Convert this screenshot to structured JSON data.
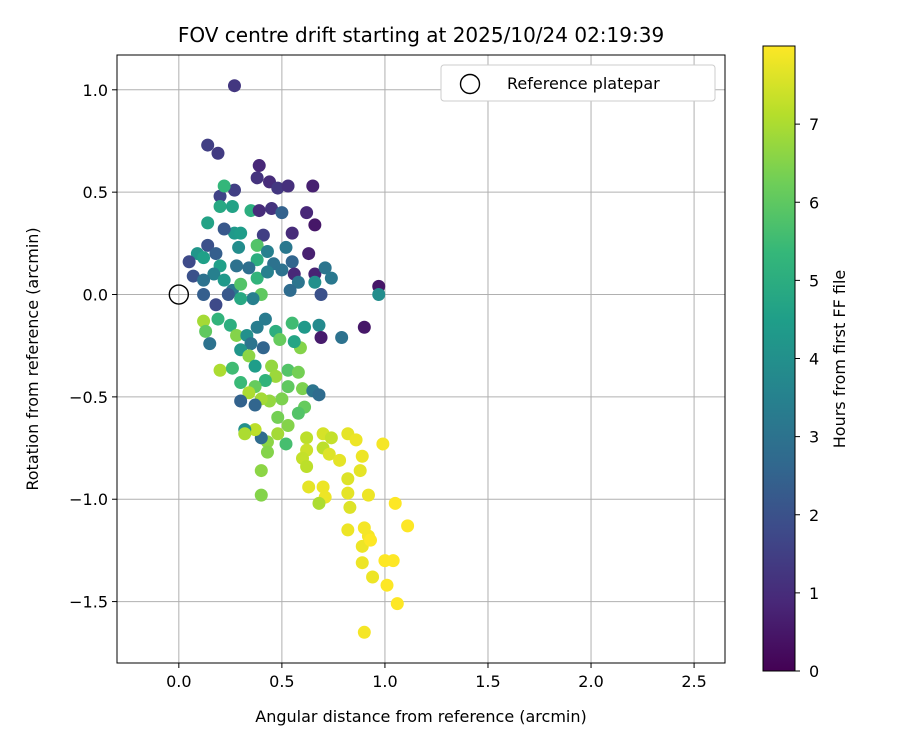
{
  "chart_data": {
    "type": "scatter",
    "title": "FOV centre drift starting at 2025/10/24 02:19:39",
    "xlabel": "Angular distance from reference (arcmin)",
    "ylabel": "Rotation from reference (arcmin)",
    "xlim": [
      -0.3,
      2.65
    ],
    "ylim": [
      -1.8,
      1.17
    ],
    "xticks": [
      0.0,
      0.5,
      1.0,
      1.5,
      2.0,
      2.5
    ],
    "xtick_labels": [
      "0.0",
      "0.5",
      "1.0",
      "1.5",
      "2.0",
      "2.5"
    ],
    "yticks": [
      1.0,
      0.5,
      0.0,
      -0.5,
      -1.0,
      -1.5
    ],
    "ytick_labels": [
      "1.0",
      "0.5",
      "0.0",
      "−0.5",
      "−1.0",
      "−1.5"
    ],
    "grid": true,
    "legend": {
      "position": "top-right",
      "entries": [
        "Reference platepar"
      ]
    },
    "reference_point": {
      "x": 0.0,
      "y": 0.0,
      "label": "Reference platepar"
    },
    "colorbar": {
      "label": "Hours from first FF file",
      "range": [
        0,
        8
      ],
      "ticks": [
        0,
        1,
        2,
        3,
        4,
        5,
        6,
        7
      ],
      "tick_labels": [
        "0",
        "1",
        "2",
        "3",
        "4",
        "5",
        "6",
        "7"
      ],
      "colormap": [
        "#440154",
        "#482878",
        "#3e4989",
        "#31688e",
        "#26828e",
        "#1f9e89",
        "#35b779",
        "#6ece58",
        "#b5de2b",
        "#fde725"
      ]
    },
    "points": [
      [
        0.27,
        1.02,
        1.3
      ],
      [
        0.14,
        0.73,
        1.5
      ],
      [
        0.19,
        0.69,
        1.4
      ],
      [
        0.39,
        0.63,
        0.9
      ],
      [
        0.38,
        0.57,
        1.2
      ],
      [
        0.44,
        0.55,
        1.0
      ],
      [
        0.48,
        0.52,
        1.3
      ],
      [
        0.53,
        0.53,
        1.1
      ],
      [
        0.65,
        0.53,
        0.7
      ],
      [
        0.2,
        0.48,
        1.6
      ],
      [
        0.27,
        0.51,
        1.5
      ],
      [
        0.22,
        0.53,
        5.3
      ],
      [
        0.2,
        0.43,
        4.8
      ],
      [
        0.26,
        0.43,
        4.6
      ],
      [
        0.35,
        0.41,
        5.0
      ],
      [
        0.39,
        0.41,
        1.0
      ],
      [
        0.45,
        0.42,
        1.2
      ],
      [
        0.5,
        0.4,
        2.5
      ],
      [
        0.62,
        0.4,
        0.9
      ],
      [
        0.66,
        0.34,
        0.5
      ],
      [
        0.55,
        0.3,
        1.0
      ],
      [
        0.41,
        0.29,
        1.5
      ],
      [
        0.27,
        0.3,
        4.3
      ],
      [
        0.22,
        0.32,
        2.2
      ],
      [
        0.14,
        0.35,
        4.6
      ],
      [
        0.14,
        0.24,
        2.0
      ],
      [
        0.18,
        0.2,
        2.4
      ],
      [
        0.09,
        0.2,
        4.2
      ],
      [
        0.05,
        0.16,
        1.8
      ],
      [
        0.12,
        0.18,
        4.5
      ],
      [
        0.29,
        0.23,
        3.9
      ],
      [
        0.3,
        0.3,
        4.4
      ],
      [
        0.38,
        0.24,
        5.8
      ],
      [
        0.43,
        0.21,
        3.5
      ],
      [
        0.52,
        0.23,
        3.2
      ],
      [
        0.63,
        0.2,
        0.7
      ],
      [
        0.55,
        0.16,
        2.6
      ],
      [
        0.46,
        0.15,
        3.0
      ],
      [
        0.38,
        0.17,
        5.0
      ],
      [
        0.34,
        0.13,
        2.9
      ],
      [
        0.28,
        0.14,
        3.0
      ],
      [
        0.2,
        0.14,
        4.5
      ],
      [
        0.17,
        0.1,
        3.5
      ],
      [
        0.07,
        0.09,
        2.0
      ],
      [
        0.12,
        0.07,
        3.0
      ],
      [
        0.12,
        0.0,
        2.4
      ],
      [
        0.22,
        0.07,
        4.3
      ],
      [
        0.26,
        0.02,
        3.2
      ],
      [
        0.3,
        0.05,
        5.8
      ],
      [
        0.38,
        0.08,
        5.2
      ],
      [
        0.43,
        0.11,
        3.5
      ],
      [
        0.5,
        0.12,
        3.0
      ],
      [
        0.56,
        0.1,
        0.9
      ],
      [
        0.58,
        0.06,
        3.1
      ],
      [
        0.54,
        0.02,
        2.8
      ],
      [
        0.66,
        0.1,
        0.8
      ],
      [
        0.66,
        0.06,
        4.0
      ],
      [
        0.71,
        0.13,
        3.1
      ],
      [
        0.74,
        0.08,
        3.2
      ],
      [
        0.69,
        0.0,
        2.0
      ],
      [
        0.97,
        0.04,
        0.5
      ],
      [
        0.97,
        0.0,
        3.9
      ],
      [
        0.4,
        0.0,
        6.0
      ],
      [
        0.36,
        -0.02,
        3.5
      ],
      [
        0.3,
        -0.02,
        4.8
      ],
      [
        0.24,
        0.0,
        2.2
      ],
      [
        0.18,
        -0.05,
        1.8
      ],
      [
        0.19,
        -0.12,
        5.2
      ],
      [
        0.12,
        -0.13,
        6.9
      ],
      [
        0.13,
        -0.18,
        6.0
      ],
      [
        0.15,
        -0.24,
        3.0
      ],
      [
        0.25,
        -0.15,
        5.0
      ],
      [
        0.28,
        -0.2,
        6.5
      ],
      [
        0.33,
        -0.2,
        4.0
      ],
      [
        0.38,
        -0.16,
        3.4
      ],
      [
        0.42,
        -0.12,
        3.3
      ],
      [
        0.47,
        -0.18,
        5.0
      ],
      [
        0.55,
        -0.14,
        5.5
      ],
      [
        0.61,
        -0.16,
        4.3
      ],
      [
        0.68,
        -0.15,
        3.8
      ],
      [
        0.69,
        -0.21,
        0.6
      ],
      [
        0.79,
        -0.21,
        3.0
      ],
      [
        0.9,
        -0.16,
        0.5
      ],
      [
        0.59,
        -0.26,
        6.5
      ],
      [
        0.56,
        -0.23,
        4.7
      ],
      [
        0.49,
        -0.22,
        6.1
      ],
      [
        0.41,
        -0.26,
        2.6
      ],
      [
        0.35,
        -0.24,
        3.1
      ],
      [
        0.3,
        -0.27,
        4.2
      ],
      [
        0.34,
        -0.3,
        6.6
      ],
      [
        0.37,
        -0.35,
        4.4
      ],
      [
        0.45,
        -0.35,
        6.7
      ],
      [
        0.53,
        -0.37,
        5.8
      ],
      [
        0.58,
        -0.38,
        6.3
      ],
      [
        0.47,
        -0.4,
        6.8
      ],
      [
        0.42,
        -0.42,
        5.2
      ],
      [
        0.37,
        -0.45,
        6.1
      ],
      [
        0.3,
        -0.43,
        5.4
      ],
      [
        0.2,
        -0.37,
        7.0
      ],
      [
        0.26,
        -0.36,
        5.5
      ],
      [
        0.53,
        -0.45,
        6.0
      ],
      [
        0.6,
        -0.46,
        6.4
      ],
      [
        0.65,
        -0.47,
        3.1
      ],
      [
        0.68,
        -0.49,
        2.8
      ],
      [
        0.61,
        -0.55,
        6.1
      ],
      [
        0.58,
        -0.58,
        5.8
      ],
      [
        0.5,
        -0.51,
        6.4
      ],
      [
        0.44,
        -0.52,
        6.7
      ],
      [
        0.4,
        -0.51,
        6.9
      ],
      [
        0.34,
        -0.48,
        7.0
      ],
      [
        0.3,
        -0.52,
        2.5
      ],
      [
        0.37,
        -0.54,
        2.6
      ],
      [
        0.48,
        -0.6,
        6.3
      ],
      [
        0.53,
        -0.64,
        6.5
      ],
      [
        0.48,
        -0.68,
        6.9
      ],
      [
        0.43,
        -0.72,
        6.6
      ],
      [
        0.4,
        -0.7,
        2.8
      ],
      [
        0.37,
        -0.66,
        7.2
      ],
      [
        0.32,
        -0.66,
        4.0
      ],
      [
        0.32,
        -0.68,
        7.0
      ],
      [
        0.43,
        -0.77,
        6.5
      ],
      [
        0.52,
        -0.73,
        5.6
      ],
      [
        0.4,
        -0.86,
        6.6
      ],
      [
        0.4,
        -0.98,
        6.5
      ],
      [
        0.62,
        -0.7,
        7.2
      ],
      [
        0.62,
        -0.76,
        7.4
      ],
      [
        0.6,
        -0.8,
        7.3
      ],
      [
        0.62,
        -0.84,
        7.2
      ],
      [
        0.7,
        -0.68,
        7.5
      ],
      [
        0.74,
        -0.7,
        7.3
      ],
      [
        0.7,
        -0.75,
        7.2
      ],
      [
        0.73,
        -0.78,
        7.6
      ],
      [
        0.78,
        -0.81,
        7.7
      ],
      [
        0.82,
        -0.68,
        7.7
      ],
      [
        0.86,
        -0.71,
        7.8
      ],
      [
        0.89,
        -0.79,
        7.8
      ],
      [
        0.88,
        -0.86,
        7.7
      ],
      [
        0.99,
        -0.73,
        7.9
      ],
      [
        0.82,
        -0.9,
        7.6
      ],
      [
        0.7,
        -0.94,
        7.8
      ],
      [
        0.63,
        -0.94,
        7.7
      ],
      [
        0.71,
        -0.99,
        7.8
      ],
      [
        0.68,
        -1.02,
        7.0
      ],
      [
        0.82,
        -0.97,
        7.7
      ],
      [
        0.83,
        -1.04,
        7.6
      ],
      [
        0.92,
        -0.98,
        7.8
      ],
      [
        1.05,
        -1.02,
        8.0
      ],
      [
        0.82,
        -1.15,
        7.8
      ],
      [
        0.9,
        -1.14,
        7.9
      ],
      [
        0.92,
        -1.18,
        7.9
      ],
      [
        0.89,
        -1.23,
        7.8
      ],
      [
        0.93,
        -1.2,
        8.0
      ],
      [
        0.89,
        -1.31,
        7.8
      ],
      [
        1.0,
        -1.3,
        8.0
      ],
      [
        1.04,
        -1.3,
        8.0
      ],
      [
        0.94,
        -1.38,
        7.8
      ],
      [
        1.01,
        -1.42,
        8.0
      ],
      [
        1.11,
        -1.13,
        8.0
      ],
      [
        1.06,
        -1.51,
        8.0
      ],
      [
        0.9,
        -1.65,
        7.9
      ]
    ]
  }
}
